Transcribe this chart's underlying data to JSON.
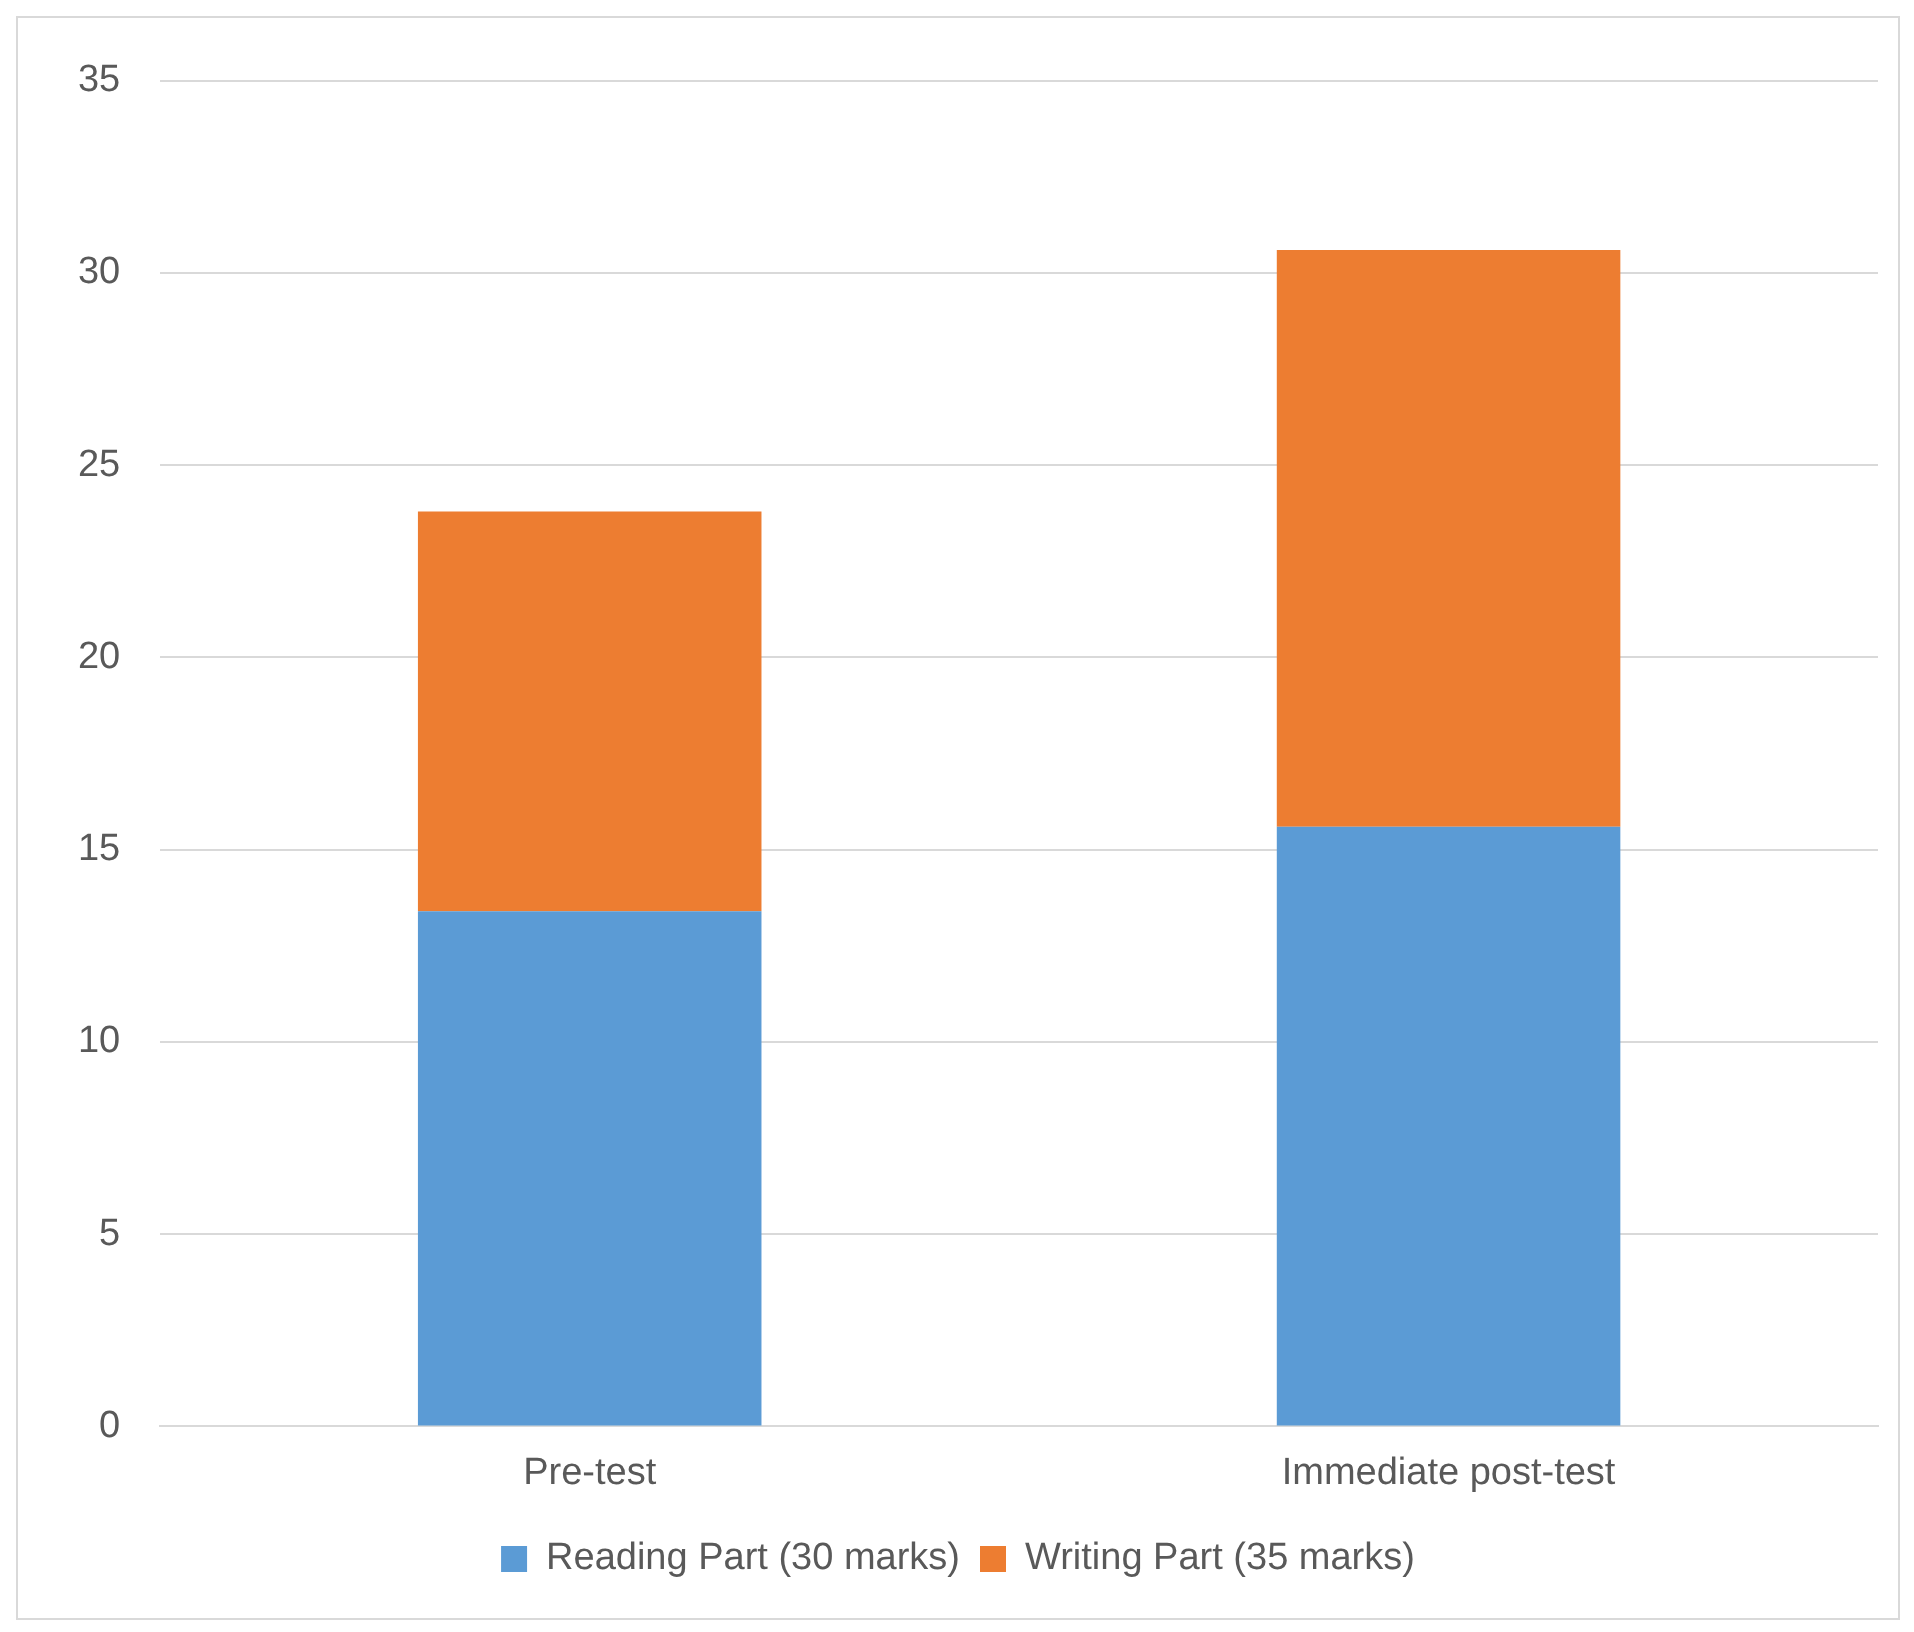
{
  "chart_data": {
    "type": "bar",
    "stacked": true,
    "categories": [
      "Pre-test",
      "Immediate post-test"
    ],
    "series": [
      {
        "name": "Reading Part (30 marks)",
        "color": "#5b9bd5",
        "values": [
          13.4,
          15.6
        ]
      },
      {
        "name": "Writing Part (35 marks)",
        "color": "#ed7d31",
        "values": [
          10.4,
          15.0
        ]
      }
    ],
    "ylim": [
      0,
      35
    ],
    "yticks": [
      0,
      5,
      10,
      15,
      20,
      25,
      30,
      35
    ],
    "grid": "y",
    "legend": "bottom"
  }
}
